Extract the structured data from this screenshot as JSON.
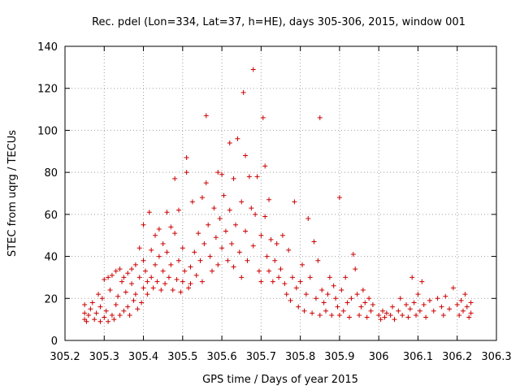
{
  "chart_data": {
    "type": "scatter",
    "title": "Rec. pdel (Lon=334, Lat=37, h=HE), days 305-306, 2015, window 001",
    "xlabel": "GPS time / Days of year 2015",
    "ylabel": "STEC from uqrg / TECUs",
    "xlim": [
      305.2,
      306.3
    ],
    "ylim": [
      0,
      140
    ],
    "x_ticks": [
      305.2,
      305.3,
      305.4,
      305.5,
      305.6,
      305.7,
      305.8,
      305.9,
      306.0,
      306.1,
      306.2,
      306.3
    ],
    "x_tick_labels": [
      "305.2",
      "305.3",
      "305.4",
      "305.5",
      "305.6",
      "305.7",
      "305.8",
      "305.9",
      "306",
      "306.1",
      "306.2",
      "306.3"
    ],
    "y_ticks": [
      0,
      20,
      40,
      60,
      80,
      100,
      120,
      140
    ],
    "y_tick_labels": [
      "0",
      "20",
      "40",
      "60",
      "80",
      "100",
      "120",
      "140"
    ],
    "grid": true,
    "marker": "plus",
    "color": "#cc0000",
    "series": [
      {
        "name": "STEC",
        "points": [
          [
            305.25,
            17
          ],
          [
            305.25,
            13
          ],
          [
            305.25,
            10
          ],
          [
            305.255,
            9
          ],
          [
            305.26,
            12
          ],
          [
            305.265,
            15
          ],
          [
            305.27,
            18
          ],
          [
            305.275,
            10
          ],
          [
            305.28,
            13
          ],
          [
            305.285,
            22
          ],
          [
            305.29,
            9
          ],
          [
            305.29,
            16
          ],
          [
            305.295,
            20
          ],
          [
            305.3,
            29
          ],
          [
            305.3,
            11
          ],
          [
            305.305,
            14
          ],
          [
            305.31,
            30
          ],
          [
            305.31,
            9
          ],
          [
            305.315,
            24
          ],
          [
            305.32,
            31
          ],
          [
            305.32,
            12
          ],
          [
            305.325,
            10
          ],
          [
            305.33,
            33
          ],
          [
            305.33,
            17
          ],
          [
            305.335,
            21
          ],
          [
            305.34,
            34
          ],
          [
            305.34,
            12
          ],
          [
            305.345,
            28
          ],
          [
            305.35,
            30
          ],
          [
            305.35,
            14
          ],
          [
            305.355,
            23
          ],
          [
            305.36,
            32
          ],
          [
            305.36,
            16
          ],
          [
            305.365,
            12
          ],
          [
            305.37,
            34
          ],
          [
            305.37,
            27
          ],
          [
            305.375,
            19
          ],
          [
            305.38,
            36
          ],
          [
            305.38,
            22
          ],
          [
            305.385,
            15
          ],
          [
            305.39,
            44
          ],
          [
            305.39,
            30
          ],
          [
            305.395,
            18
          ],
          [
            305.4,
            55
          ],
          [
            305.4,
            38
          ],
          [
            305.4,
            25
          ],
          [
            305.405,
            33
          ],
          [
            305.41,
            28
          ],
          [
            305.41,
            22
          ],
          [
            305.415,
            61
          ],
          [
            305.42,
            43
          ],
          [
            305.42,
            30
          ],
          [
            305.425,
            25
          ],
          [
            305.43,
            50
          ],
          [
            305.43,
            36
          ],
          [
            305.435,
            28
          ],
          [
            305.44,
            53
          ],
          [
            305.44,
            40
          ],
          [
            305.445,
            24
          ],
          [
            305.45,
            46
          ],
          [
            305.45,
            33
          ],
          [
            305.455,
            27
          ],
          [
            305.46,
            61
          ],
          [
            305.46,
            42
          ],
          [
            305.465,
            30
          ],
          [
            305.47,
            54
          ],
          [
            305.47,
            36
          ],
          [
            305.475,
            24
          ],
          [
            305.48,
            77
          ],
          [
            305.48,
            51
          ],
          [
            305.485,
            29
          ],
          [
            305.49,
            62
          ],
          [
            305.49,
            38
          ],
          [
            305.495,
            23
          ],
          [
            305.5,
            44
          ],
          [
            305.5,
            28
          ],
          [
            305.505,
            33
          ],
          [
            305.51,
            87
          ],
          [
            305.51,
            80
          ],
          [
            305.515,
            25
          ],
          [
            305.52,
            35
          ],
          [
            305.52,
            27
          ],
          [
            305.525,
            66
          ],
          [
            305.53,
            42
          ],
          [
            305.535,
            31
          ],
          [
            305.54,
            51
          ],
          [
            305.545,
            38
          ],
          [
            305.55,
            68
          ],
          [
            305.55,
            28
          ],
          [
            305.555,
            46
          ],
          [
            305.56,
            107
          ],
          [
            305.56,
            75
          ],
          [
            305.565,
            55
          ],
          [
            305.57,
            40
          ],
          [
            305.575,
            33
          ],
          [
            305.58,
            63
          ],
          [
            305.585,
            49
          ],
          [
            305.59,
            80
          ],
          [
            305.59,
            36
          ],
          [
            305.595,
            58
          ],
          [
            305.6,
            79
          ],
          [
            305.6,
            44
          ],
          [
            305.605,
            69
          ],
          [
            305.61,
            52
          ],
          [
            305.615,
            38
          ],
          [
            305.62,
            94
          ],
          [
            305.62,
            62
          ],
          [
            305.625,
            46
          ],
          [
            305.63,
            77
          ],
          [
            305.63,
            35
          ],
          [
            305.635,
            55
          ],
          [
            305.64,
            96
          ],
          [
            305.645,
            42
          ],
          [
            305.65,
            66
          ],
          [
            305.65,
            30
          ],
          [
            305.655,
            118
          ],
          [
            305.66,
            88
          ],
          [
            305.66,
            52
          ],
          [
            305.665,
            38
          ],
          [
            305.67,
            78
          ],
          [
            305.675,
            63
          ],
          [
            305.68,
            129
          ],
          [
            305.68,
            45
          ],
          [
            305.685,
            60
          ],
          [
            305.69,
            78
          ],
          [
            305.695,
            33
          ],
          [
            305.7,
            50
          ],
          [
            305.7,
            28
          ],
          [
            305.705,
            106
          ],
          [
            305.71,
            83
          ],
          [
            305.71,
            59
          ],
          [
            305.715,
            40
          ],
          [
            305.72,
            67
          ],
          [
            305.72,
            33
          ],
          [
            305.725,
            48
          ],
          [
            305.73,
            28
          ],
          [
            305.735,
            38
          ],
          [
            305.74,
            46
          ],
          [
            305.745,
            30
          ],
          [
            305.75,
            34
          ],
          [
            305.755,
            50
          ],
          [
            305.76,
            27
          ],
          [
            305.765,
            22
          ],
          [
            305.77,
            43
          ],
          [
            305.775,
            19
          ],
          [
            305.78,
            30
          ],
          [
            305.785,
            66
          ],
          [
            305.79,
            25
          ],
          [
            305.795,
            16
          ],
          [
            305.8,
            28
          ],
          [
            305.805,
            36
          ],
          [
            305.81,
            14
          ],
          [
            305.815,
            22
          ],
          [
            305.82,
            58
          ],
          [
            305.825,
            30
          ],
          [
            305.83,
            13
          ],
          [
            305.835,
            47
          ],
          [
            305.84,
            20
          ],
          [
            305.845,
            38
          ],
          [
            305.85,
            106
          ],
          [
            305.85,
            12
          ],
          [
            305.855,
            24
          ],
          [
            305.86,
            18
          ],
          [
            305.865,
            14
          ],
          [
            305.87,
            22
          ],
          [
            305.875,
            30
          ],
          [
            305.88,
            12
          ],
          [
            305.885,
            26
          ],
          [
            305.89,
            20
          ],
          [
            305.895,
            16
          ],
          [
            305.9,
            68
          ],
          [
            305.9,
            12
          ],
          [
            305.905,
            24
          ],
          [
            305.91,
            14
          ],
          [
            305.915,
            30
          ],
          [
            305.92,
            18
          ],
          [
            305.925,
            11
          ],
          [
            305.93,
            20
          ],
          [
            305.935,
            41
          ],
          [
            305.94,
            34
          ],
          [
            305.945,
            22
          ],
          [
            305.95,
            12
          ],
          [
            305.955,
            16
          ],
          [
            305.96,
            24
          ],
          [
            305.965,
            18
          ],
          [
            305.97,
            11
          ],
          [
            305.975,
            20
          ],
          [
            305.98,
            14
          ],
          [
            305.985,
            17
          ],
          [
            306.0,
            12
          ],
          [
            306.005,
            10
          ],
          [
            306.01,
            14
          ],
          [
            306.015,
            11
          ],
          [
            306.02,
            13
          ],
          [
            306.03,
            12
          ],
          [
            306.035,
            16
          ],
          [
            306.04,
            10
          ],
          [
            306.05,
            14
          ],
          [
            306.055,
            20
          ],
          [
            306.06,
            12
          ],
          [
            306.07,
            17
          ],
          [
            306.075,
            11
          ],
          [
            306.08,
            15
          ],
          [
            306.085,
            30
          ],
          [
            306.09,
            18
          ],
          [
            306.095,
            12
          ],
          [
            306.1,
            22
          ],
          [
            306.105,
            14
          ],
          [
            306.11,
            28
          ],
          [
            306.115,
            17
          ],
          [
            306.12,
            11
          ],
          [
            306.13,
            19
          ],
          [
            306.14,
            14
          ],
          [
            306.15,
            20
          ],
          [
            306.16,
            16
          ],
          [
            306.165,
            12
          ],
          [
            306.17,
            21
          ],
          [
            306.18,
            15
          ],
          [
            306.19,
            25
          ],
          [
            306.2,
            17
          ],
          [
            306.205,
            12
          ],
          [
            306.21,
            19
          ],
          [
            306.215,
            14
          ],
          [
            306.22,
            22
          ],
          [
            306.225,
            16
          ],
          [
            306.23,
            11
          ],
          [
            306.235,
            18
          ],
          [
            306.235,
            13
          ]
        ]
      }
    ]
  }
}
